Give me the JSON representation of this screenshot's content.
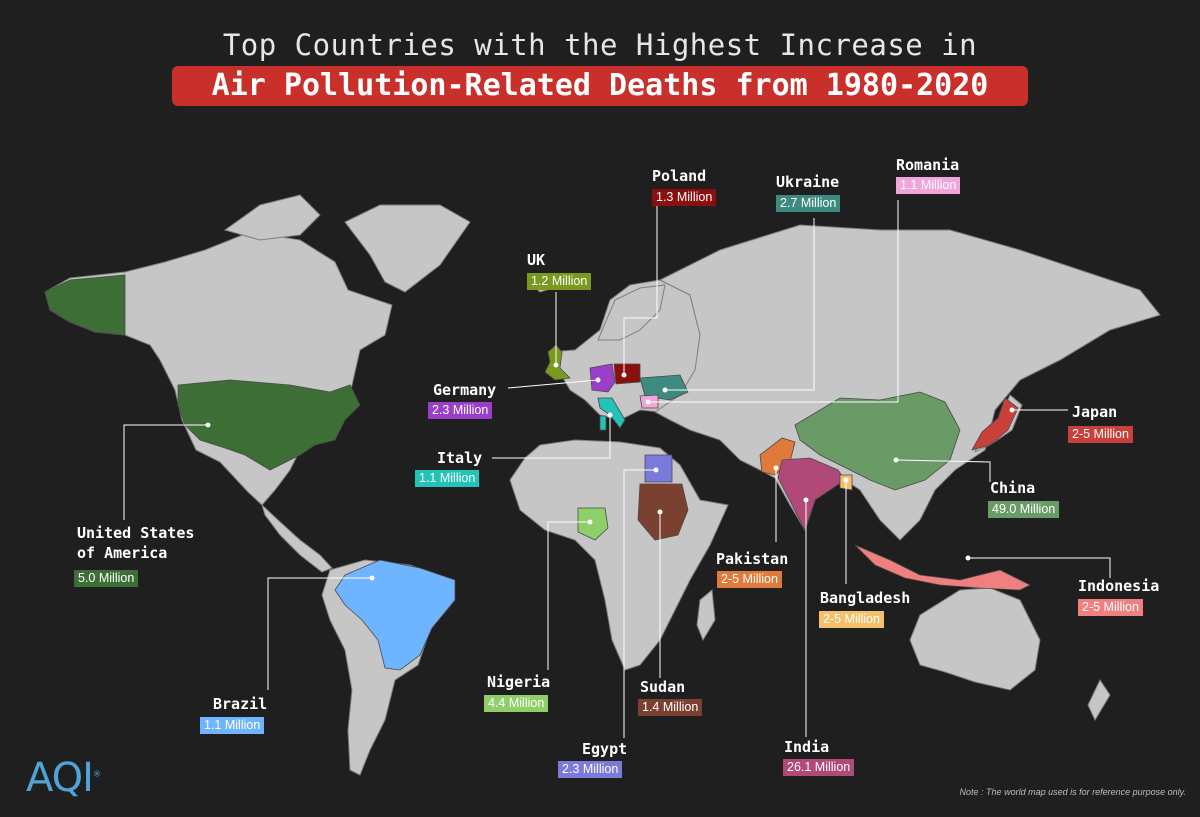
{
  "title": {
    "line1": "Top Countries with the Highest Increase in",
    "line2": "Air Pollution-Related Deaths from 1980-2020"
  },
  "note": "Note : The world map used is for reference purpose only.",
  "logo": "AQI",
  "colors": {
    "background": "#1f1f1f",
    "land": "#c6c6c6",
    "accent": "#c9302c"
  },
  "countries": [
    {
      "id": "poland",
      "name": "Poland",
      "value": "1.3 Million",
      "color": "#8b0f0f"
    },
    {
      "id": "ukraine",
      "name": "Ukraine",
      "value": "2.7 Million",
      "color": "#3f8a80"
    },
    {
      "id": "romania",
      "name": "Romania",
      "value": "1.1 Million",
      "color": "#f0a6dc"
    },
    {
      "id": "uk",
      "name": "UK",
      "value": "1.2 Million",
      "color": "#7a9a1f"
    },
    {
      "id": "germany",
      "name": "Germany",
      "value": "2.3 Million",
      "color": "#9a3fc9"
    },
    {
      "id": "italy",
      "name": "Italy",
      "value": "1.1 Million",
      "color": "#22c4b8"
    },
    {
      "id": "japan",
      "name": "Japan",
      "value": "2-5 Million",
      "color": "#c9403a"
    },
    {
      "id": "china",
      "name": "China",
      "value": "49.0 Million",
      "color": "#6a9a66"
    },
    {
      "id": "usa",
      "name": "United States\nof America",
      "value": "5.0 Million",
      "color": "#3d6e36"
    },
    {
      "id": "pakistan",
      "name": "Pakistan",
      "value": "2-5 Million",
      "color": "#e07a3a"
    },
    {
      "id": "bangladesh",
      "name": "Bangladesh",
      "value": "2-5 Million",
      "color": "#f5c06a"
    },
    {
      "id": "indonesia",
      "name": "Indonesia",
      "value": "2-5 Million",
      "color": "#f08080"
    },
    {
      "id": "brazil",
      "name": "Brazil",
      "value": "1.1 Million",
      "color": "#6fb4ff"
    },
    {
      "id": "nigeria",
      "name": "Nigeria",
      "value": "4.4 Million",
      "color": "#8fcf6a"
    },
    {
      "id": "sudan",
      "name": "Sudan",
      "value": "1.4 Million",
      "color": "#7a4030"
    },
    {
      "id": "egypt",
      "name": "Egypt",
      "value": "2.3 Million",
      "color": "#7a7adb"
    },
    {
      "id": "india",
      "name": "India",
      "value": "26.1 Million",
      "color": "#b04878"
    }
  ]
}
